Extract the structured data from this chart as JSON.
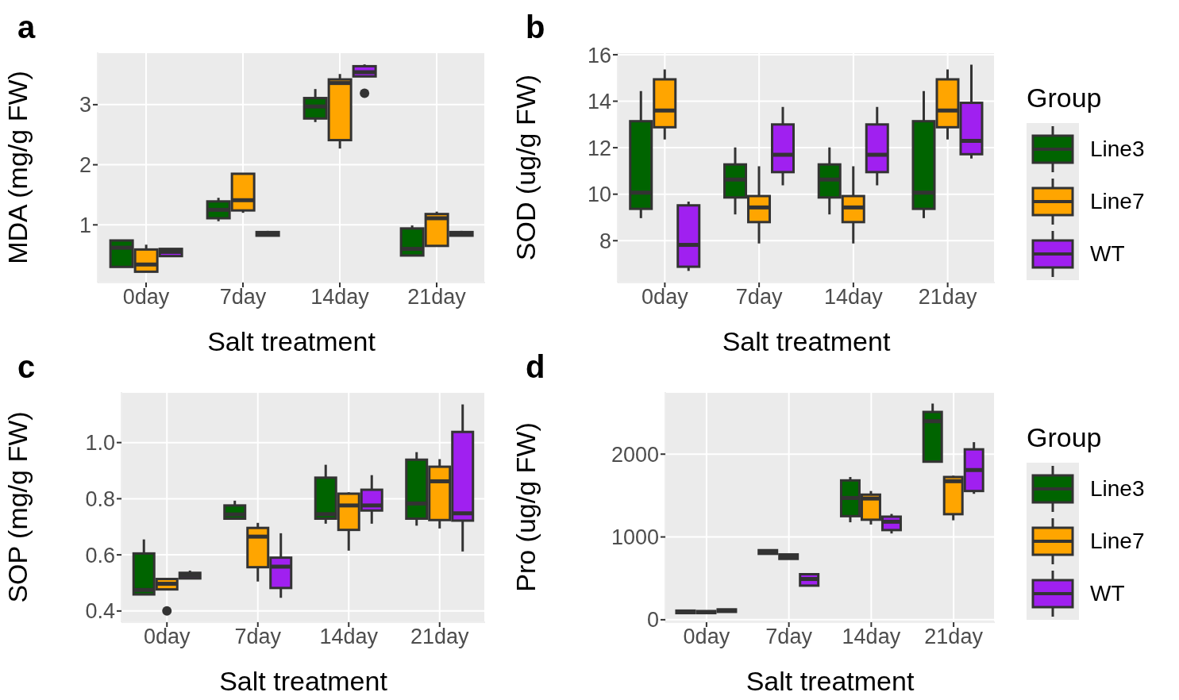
{
  "chart_data": [
    {
      "type": "box",
      "title": "a",
      "xlabel": "Salt treatment",
      "ylabel": "MDA (mg/g FW)",
      "categories": [
        "0day",
        "7day",
        "14day",
        "21day"
      ],
      "ylim": [
        0.04,
        3.87
      ],
      "yticks": [
        1,
        2,
        3
      ],
      "grid": true,
      "legend": false,
      "series": [
        {
          "color": "#006400",
          "boxes": [
            {
              "low": 0.3,
              "q1": 0.3,
              "median": 0.62,
              "q3": 0.74,
              "high": 0.74
            },
            {
              "low": 1.06,
              "q1": 1.11,
              "median": 1.25,
              "q3": 1.39,
              "high": 1.45
            },
            {
              "low": 2.71,
              "q1": 2.77,
              "median": 2.97,
              "q3": 3.11,
              "high": 3.26
            },
            {
              "low": 0.49,
              "q1": 0.49,
              "median": 0.6,
              "q3": 0.94,
              "high": 0.99
            }
          ]
        },
        {
          "color": "#ffa500",
          "boxes": [
            {
              "low": 0.22,
              "q1": 0.22,
              "median": 0.34,
              "q3": 0.59,
              "high": 0.67
            },
            {
              "low": 1.2,
              "q1": 1.24,
              "median": 1.41,
              "q3": 1.85,
              "high": 1.85
            },
            {
              "low": 2.27,
              "q1": 2.41,
              "median": 3.36,
              "q3": 3.42,
              "high": 3.51
            },
            {
              "low": 0.65,
              "q1": 0.65,
              "median": 1.11,
              "q3": 1.18,
              "high": 1.22
            }
          ]
        },
        {
          "color": "#a020f0",
          "boxes": [
            {
              "low": 0.48,
              "q1": 0.48,
              "median": 0.55,
              "q3": 0.6,
              "high": 0.6
            },
            {
              "low": 0.82,
              "q1": 0.82,
              "median": 0.85,
              "q3": 0.88,
              "high": 0.9
            },
            {
              "low": 3.47,
              "q1": 3.47,
              "median": 3.54,
              "q3": 3.64,
              "high": 3.67,
              "outliers": [
                3.19
              ]
            },
            {
              "low": 0.82,
              "q1": 0.82,
              "median": 0.85,
              "q3": 0.88,
              "high": 0.9
            }
          ]
        }
      ]
    },
    {
      "type": "box",
      "title": "b",
      "xlabel": "Salt treatment",
      "ylabel": "SOD (ug/g FW)",
      "legend_title": "Group",
      "categories": [
        "0day",
        "7day",
        "14day",
        "21day"
      ],
      "ylim": [
        6.2,
        16.1
      ],
      "yticks": [
        8,
        10,
        12,
        14,
        16
      ],
      "grid": true,
      "legend": "right",
      "series": [
        {
          "name": "Line3",
          "color": "#006400",
          "boxes": [
            {
              "low": 8.97,
              "q1": 9.37,
              "median": 10.07,
              "q3": 13.14,
              "high": 14.44
            },
            {
              "low": 9.13,
              "q1": 9.86,
              "median": 10.63,
              "q3": 11.28,
              "high": 12.01
            },
            {
              "low": 9.13,
              "q1": 9.86,
              "median": 10.63,
              "q3": 11.28,
              "high": 12.01
            },
            {
              "low": 8.97,
              "q1": 9.37,
              "median": 10.07,
              "q3": 13.14,
              "high": 14.44
            }
          ]
        },
        {
          "name": "Line7",
          "color": "#ffa500",
          "boxes": [
            {
              "low": 12.35,
              "q1": 12.88,
              "median": 13.6,
              "q3": 14.94,
              "high": 15.37
            },
            {
              "low": 7.88,
              "q1": 8.8,
              "median": 9.43,
              "q3": 9.92,
              "high": 11.2
            },
            {
              "low": 7.88,
              "q1": 8.8,
              "median": 9.43,
              "q3": 9.92,
              "high": 11.2
            },
            {
              "low": 12.35,
              "q1": 12.88,
              "median": 13.6,
              "q3": 14.94,
              "high": 15.37
            }
          ]
        },
        {
          "name": "WT",
          "color": "#a020f0",
          "boxes": [
            {
              "low": 6.7,
              "q1": 6.88,
              "median": 7.82,
              "q3": 9.52,
              "high": 9.68
            },
            {
              "low": 10.38,
              "q1": 10.95,
              "median": 11.7,
              "q3": 13.0,
              "high": 13.75
            },
            {
              "low": 10.38,
              "q1": 10.95,
              "median": 11.7,
              "q3": 13.0,
              "high": 13.75
            },
            {
              "low": 11.53,
              "q1": 11.72,
              "median": 12.29,
              "q3": 13.93,
              "high": 15.57
            }
          ]
        }
      ]
    },
    {
      "type": "box",
      "title": "c",
      "xlabel": "Salt treatment",
      "ylabel": "SOP (mg/g FW)",
      "categories": [
        "0day",
        "7day",
        "14day",
        "21day"
      ],
      "ylim": [
        0.36,
        1.18
      ],
      "yticks": [
        0.4,
        0.6,
        0.8,
        {
          "value": 1,
          "label": "1.0"
        }
      ],
      "grid": true,
      "legend": false,
      "series": [
        {
          "color": "#006400",
          "boxes": [
            {
              "low": 0.459,
              "q1": 0.459,
              "median": 0.475,
              "q3": 0.605,
              "high": 0.655
            },
            {
              "low": 0.729,
              "q1": 0.729,
              "median": 0.744,
              "q3": 0.776,
              "high": 0.793
            },
            {
              "low": 0.711,
              "q1": 0.729,
              "median": 0.745,
              "q3": 0.875,
              "high": 0.921
            },
            {
              "low": 0.704,
              "q1": 0.729,
              "median": 0.783,
              "q3": 0.939,
              "high": 0.966
            }
          ]
        },
        {
          "color": "#ffa500",
          "boxes": [
            {
              "low": 0.477,
              "q1": 0.477,
              "median": 0.497,
              "q3": 0.514,
              "high": 0.514,
              "outliers": [
                0.4
              ]
            },
            {
              "low": 0.505,
              "q1": 0.556,
              "median": 0.665,
              "q3": 0.696,
              "high": 0.714
            },
            {
              "low": 0.615,
              "q1": 0.689,
              "median": 0.776,
              "q3": 0.818,
              "high": 0.823
            },
            {
              "low": 0.694,
              "q1": 0.724,
              "median": 0.862,
              "q3": 0.914,
              "high": 0.941
            }
          ]
        },
        {
          "color": "#a020f0",
          "boxes": [
            {
              "low": 0.516,
              "q1": 0.516,
              "median": 0.526,
              "q3": 0.536,
              "high": 0.544
            },
            {
              "low": 0.447,
              "q1": 0.482,
              "median": 0.558,
              "q3": 0.59,
              "high": 0.677
            },
            {
              "low": 0.711,
              "q1": 0.758,
              "median": 0.776,
              "q3": 0.832,
              "high": 0.884
            },
            {
              "low": 0.612,
              "q1": 0.722,
              "median": 0.748,
              "q3": 1.038,
              "high": 1.136
            }
          ]
        }
      ]
    },
    {
      "type": "box",
      "title": "d",
      "xlabel": "Salt treatment",
      "ylabel": "Pro (ug/g FW)",
      "legend_title": "Group",
      "categories": [
        "0day",
        "7day",
        "14day",
        "21day"
      ],
      "ylim": [
        -30,
        2750
      ],
      "yticks": [
        0,
        1000,
        2000
      ],
      "grid": true,
      "legend": "right",
      "series": [
        {
          "name": "Line3",
          "color": "#006400",
          "boxes": [
            {
              "low": 80,
              "q1": 80,
              "median": 95,
              "q3": 110,
              "high": 115
            },
            {
              "low": 796,
              "q1": 796,
              "median": 820,
              "q3": 840,
              "high": 840
            },
            {
              "low": 1177,
              "q1": 1251,
              "median": 1471,
              "q3": 1683,
              "high": 1724
            },
            {
              "low": 1899,
              "q1": 1909,
              "median": 2398,
              "q3": 2510,
              "high": 2611
            }
          ]
        },
        {
          "name": "Line7",
          "color": "#ffa500",
          "boxes": [
            {
              "low": 80,
              "q1": 80,
              "median": 90,
              "q3": 105,
              "high": 110
            },
            {
              "low": 735,
              "q1": 735,
              "median": 762,
              "q3": 789,
              "high": 789
            },
            {
              "low": 1150,
              "q1": 1208,
              "median": 1464,
              "q3": 1511,
              "high": 1555
            },
            {
              "low": 1201,
              "q1": 1275,
              "median": 1673,
              "q3": 1724,
              "high": 1740
            }
          ]
        },
        {
          "name": "WT",
          "color": "#a020f0",
          "boxes": [
            {
              "low": 95,
              "q1": 95,
              "median": 110,
              "q3": 125,
              "high": 130
            },
            {
              "low": 412,
              "q1": 412,
              "median": 492,
              "q3": 550,
              "high": 550
            },
            {
              "low": 1042,
              "q1": 1083,
              "median": 1184,
              "q3": 1245,
              "high": 1278
            },
            {
              "low": 1521,
              "q1": 1555,
              "median": 1808,
              "q3": 2058,
              "high": 2145
            }
          ]
        }
      ]
    }
  ]
}
